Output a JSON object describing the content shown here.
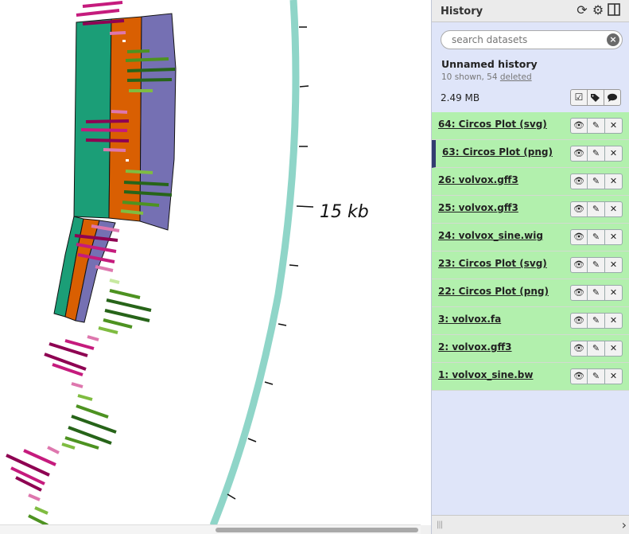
{
  "history_panel": {
    "title": "History",
    "icons": {
      "refresh": "refresh-icon",
      "options": "gear-icon",
      "toggle": "columns-icon"
    },
    "search": {
      "placeholder": "search datasets",
      "clear_icon": "clear-circle-icon"
    },
    "name": "Unnamed history",
    "shown_text": "10 shown, 54 ",
    "deleted_link": "deleted",
    "size": "2.49 MB",
    "size_actions": [
      "checkbox-icon",
      "tags-icon",
      "comment-icon"
    ],
    "datasets": [
      {
        "label": "64: Circos Plot (svg)",
        "current": false
      },
      {
        "label": "63: Circos Plot (png)",
        "current": true
      },
      {
        "label": "26: volvox.gff3",
        "current": false
      },
      {
        "label": "25: volvox.gff3",
        "current": false
      },
      {
        "label": "24: volvox_sine.wig",
        "current": false
      },
      {
        "label": "23: Circos Plot (svg)",
        "current": false
      },
      {
        "label": "22: Circos Plot (png)",
        "current": false
      },
      {
        "label": "3: volvox.fa",
        "current": false
      },
      {
        "label": "2: volvox.gff3",
        "current": false
      },
      {
        "label": "1: volvox_sine.bw",
        "current": false
      }
    ],
    "dataset_actions": [
      "eye-icon",
      "pencil-icon",
      "close-icon"
    ],
    "state_color": "#b2f0ad"
  },
  "plot": {
    "tick_label": "15 kb",
    "colors": {
      "ideogram": "#8fd5c8",
      "teal": "#1b9e77",
      "orange": "#d95f02",
      "purple": "#7570b3",
      "magenta": "#c51b7d",
      "dark_magenta": "#8e0152",
      "light_pink": "#de77ae",
      "green": "#4d9221",
      "dark_green": "#276419",
      "light_green": "#7fbc41"
    }
  }
}
